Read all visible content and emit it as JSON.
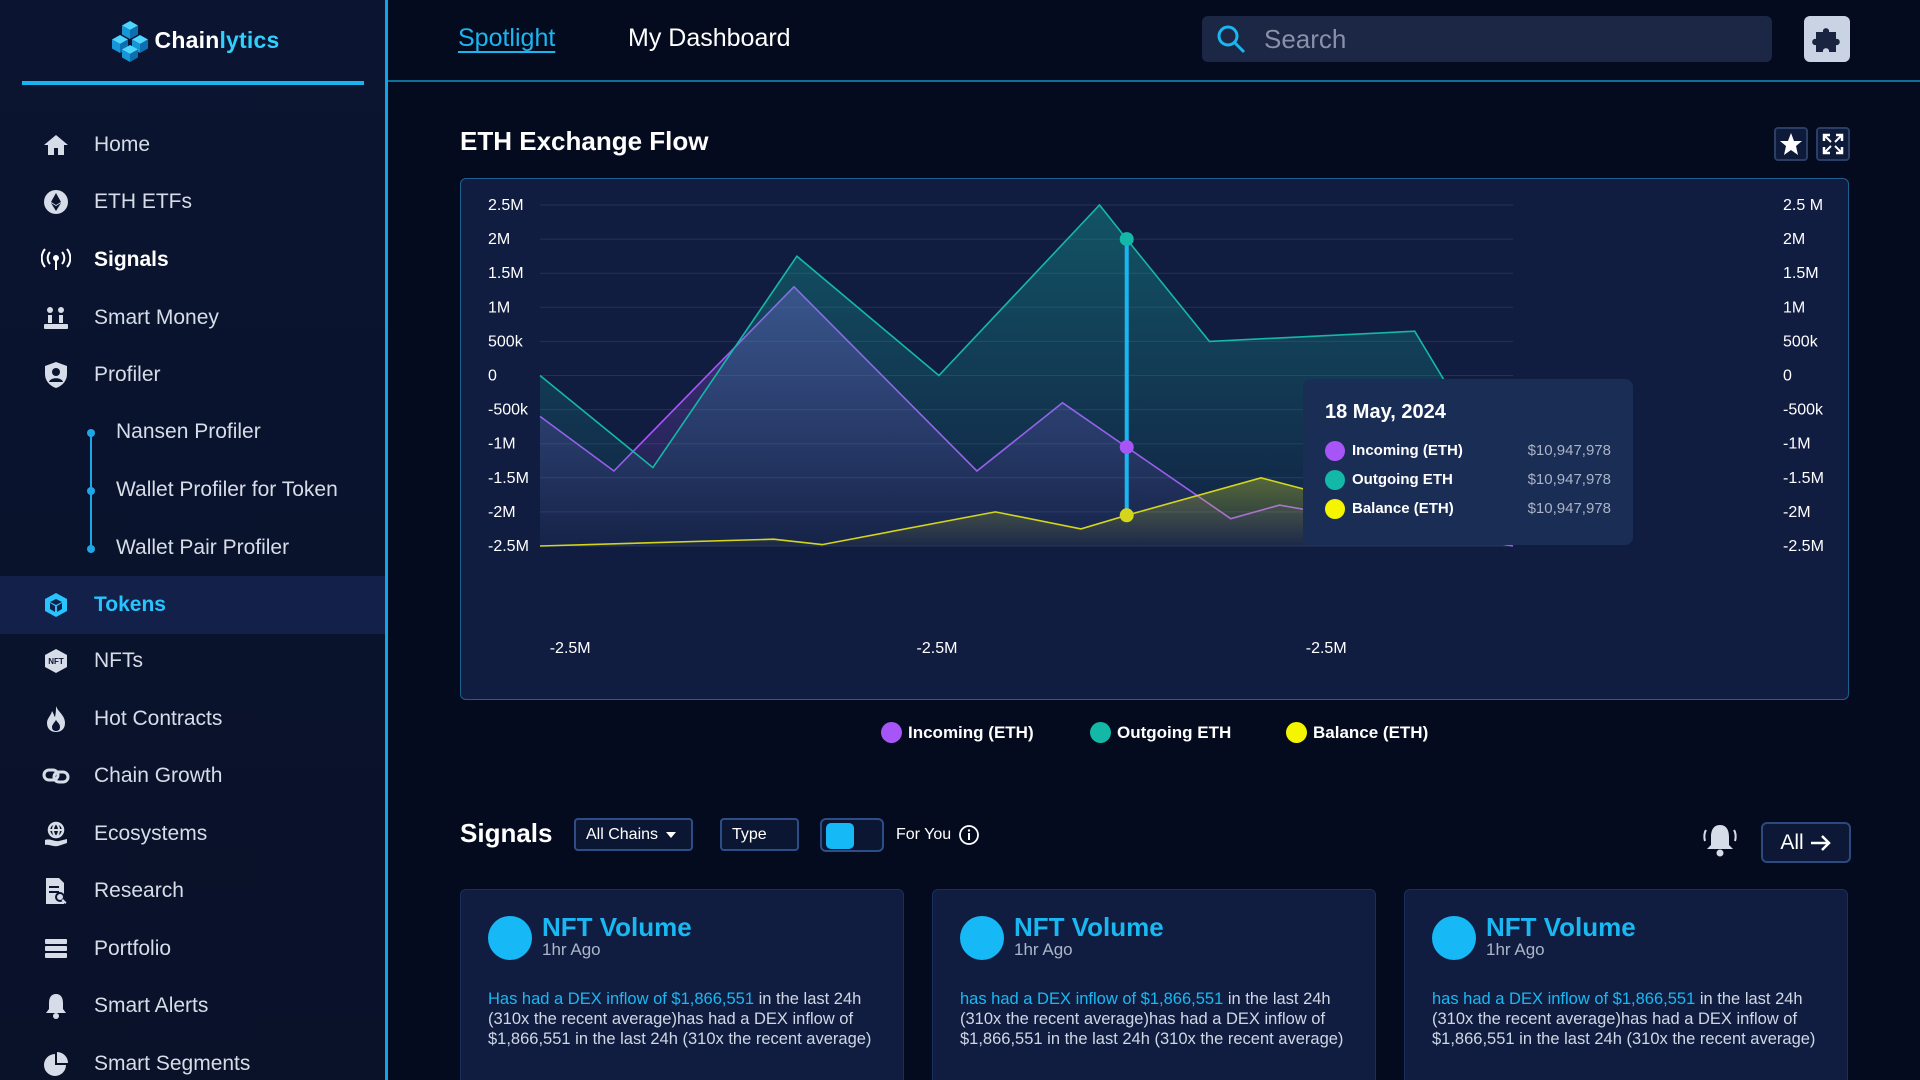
{
  "app": {
    "name_main": "Chain",
    "name_accent": "lytics"
  },
  "sidebar": {
    "items": [
      {
        "label": "Home",
        "icon": "home-icon"
      },
      {
        "label": "ETH ETFs",
        "icon": "ethereum-icon"
      },
      {
        "label": "Signals",
        "icon": "broadcast-icon"
      },
      {
        "label": "Smart Money",
        "icon": "money-icon"
      },
      {
        "label": "Profiler",
        "icon": "user-shield-icon"
      },
      {
        "label": "Tokens",
        "icon": "token-icon"
      },
      {
        "label": "NFTs",
        "icon": "nft-icon"
      },
      {
        "label": "Hot Contracts",
        "icon": "flame-icon"
      },
      {
        "label": "Chain Growth",
        "icon": "chain-icon"
      },
      {
        "label": "Ecosystems",
        "icon": "ecosystem-icon"
      },
      {
        "label": "Research",
        "icon": "document-icon"
      },
      {
        "label": "Portfolio",
        "icon": "portfolio-icon"
      },
      {
        "label": "Smart Alerts",
        "icon": "bell-icon"
      },
      {
        "label": "Smart Segments",
        "icon": "pie-icon"
      }
    ],
    "sub_items": [
      "Nansen Profiler",
      "Wallet Profiler for Token",
      "Wallet Pair Profiler"
    ],
    "active": "Tokens"
  },
  "topbar": {
    "tabs": [
      "Spotlight",
      "My Dashboard"
    ],
    "active_tab": "Spotlight",
    "search_placeholder": "Search"
  },
  "panel": {
    "title": "ETH Exchange Flow"
  },
  "chart_data": {
    "type": "area",
    "title": "ETH Exchange Flow",
    "y_ticks_left": [
      "2.5M",
      "2M",
      "1.5M",
      "1M",
      "500k",
      "0",
      "-500k",
      "-1M",
      "-1.5M",
      "-2M",
      "-2.5M"
    ],
    "y_ticks_right": [
      "2.5 M",
      "2M",
      "1.5M",
      "1M",
      "500k",
      "0",
      "-500k",
      "-1M",
      "-1.5M",
      "-2M",
      "-2.5M"
    ],
    "x_ticks": [
      "-2.5M",
      "-2.5M",
      "-2.5M"
    ],
    "ylim": [
      -2500000,
      2500000
    ],
    "x": [
      0,
      0.076,
      0.116,
      0.261,
      0.41,
      0.575,
      0.641,
      0.717,
      0.752,
      0.899,
      0.928,
      1.0
    ],
    "series": [
      {
        "name": "Incoming (ETH)",
        "color": "#a855f7",
        "points": [
          [
            0,
            -600000
          ],
          [
            0.076,
            -1400000
          ],
          [
            0.261,
            1300000
          ],
          [
            0.449,
            -1400000
          ],
          [
            0.537,
            -400000
          ],
          [
            0.603,
            -1050000
          ],
          [
            0.71,
            -2100000
          ],
          [
            0.76,
            -1900000
          ],
          [
            1.0,
            -2500000
          ]
        ]
      },
      {
        "name": "Outgoing ETH",
        "color": "#14b8a6",
        "points": [
          [
            0,
            0
          ],
          [
            0.116,
            -1350000
          ],
          [
            0.264,
            1750000
          ],
          [
            0.41,
            0
          ],
          [
            0.575,
            2500000
          ],
          [
            0.603,
            2000000
          ],
          [
            0.688,
            500000
          ],
          [
            0.899,
            650000
          ],
          [
            1.0,
            -1750000
          ]
        ]
      },
      {
        "name": "Balance (ETH)",
        "color": "#d4d61c",
        "points": [
          [
            0,
            -2500000
          ],
          [
            0.24,
            -2400000
          ],
          [
            0.29,
            -2480000
          ],
          [
            0.468,
            -2000000
          ],
          [
            0.556,
            -2250000
          ],
          [
            0.603,
            -2050000
          ],
          [
            0.741,
            -1500000
          ],
          [
            0.928,
            -2200000
          ],
          [
            1.0,
            -2000000
          ]
        ]
      }
    ],
    "crosshair_x": 0.603,
    "legend_position": "bottom-center",
    "tooltip": {
      "date": "18 May, 2024",
      "rows": [
        {
          "label": "Incoming (ETH)",
          "value": "$10,947,978",
          "color": "#a855f7"
        },
        {
          "label": "Outgoing ETH",
          "value": "$10,947,978",
          "color": "#14b8a6"
        },
        {
          "label": "Balance (ETH)",
          "value": "$10,947,978",
          "color": "#f5f500"
        }
      ]
    }
  },
  "legend": [
    {
      "label": "Incoming (ETH)",
      "color": "#a855f7"
    },
    {
      "label": "Outgoing ETH",
      "color": "#14b8a6"
    },
    {
      "label": "Balance (ETH)",
      "color": "#f5f500"
    }
  ],
  "signals": {
    "title": "Signals",
    "chain_filter": "All Chains",
    "type_filter": "Type",
    "for_you_label": "For You",
    "all_label": "All",
    "cards": [
      {
        "title": "NFT Volume",
        "time": "1hr Ago",
        "highlight": "Has had a DEX inflow of $1,866,551",
        "body": " in the last 24h (310x the recent average)has had a DEX inflow of $1,866,551 in the last 24h (310x the recent average)"
      },
      {
        "title": "NFT Volume",
        "time": "1hr Ago",
        "highlight": "has had a DEX inflow of $1,866,551",
        "body": " in the last 24h (310x the recent average)has had a DEX inflow of $1,866,551 in the last 24h (310x the recent average)"
      },
      {
        "title": "NFT Volume",
        "time": "1hr Ago",
        "highlight": "has had a DEX inflow of $1,866,551",
        "body": " in the last 24h (310x the recent average)has had a DEX inflow of $1,866,551 in the last 24h (310x the recent average)"
      }
    ]
  },
  "colors": {
    "accent": "#19b6f2",
    "background": "#050b1e",
    "panel": "#111d40"
  }
}
